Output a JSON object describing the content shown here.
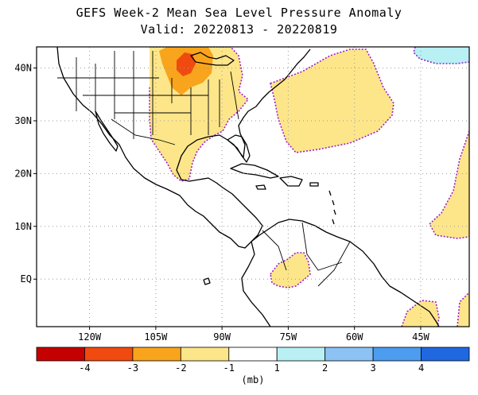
{
  "title": {
    "line1": "GEFS Week-2 Mean Sea Level Pressure Anomaly",
    "line2": "Valid: 20220813 - 20220819"
  },
  "map": {
    "lat_labels": [
      "40N",
      "30N",
      "20N",
      "10N",
      "EQ"
    ],
    "lon_labels": [
      "120W",
      "105W",
      "90W",
      "75W",
      "60W",
      "45W"
    ],
    "lat_values": [
      40,
      30,
      20,
      10,
      0
    ],
    "lon_values": [
      -120,
      -105,
      -90,
      -75,
      -60,
      -45
    ],
    "extent": {
      "lon_min": -132,
      "lon_max": -34,
      "lat_min": -9,
      "lat_max": 44
    }
  },
  "colorbar": {
    "unit": "(mb)",
    "tick_labels": [
      "-4",
      "-3",
      "-2",
      "-1",
      "1",
      "2",
      "3",
      "4"
    ],
    "colors": [
      "#c40000",
      "#f04a10",
      "#f8a41c",
      "#fde68a",
      "#ffffff",
      "#b8f0f4",
      "#8cc2f4",
      "#4c9cf0",
      "#2068e0"
    ]
  },
  "colors": {
    "land_outline": "#000000",
    "positive_anomaly_1": "#fde68a",
    "positive_anomaly_2": "#f8a41c",
    "positive_anomaly_3": "#f04a10",
    "negative_anomaly_1": "#b8f0f4",
    "contour": "#9b1fd0",
    "grid": "#9a9a9a"
  }
}
